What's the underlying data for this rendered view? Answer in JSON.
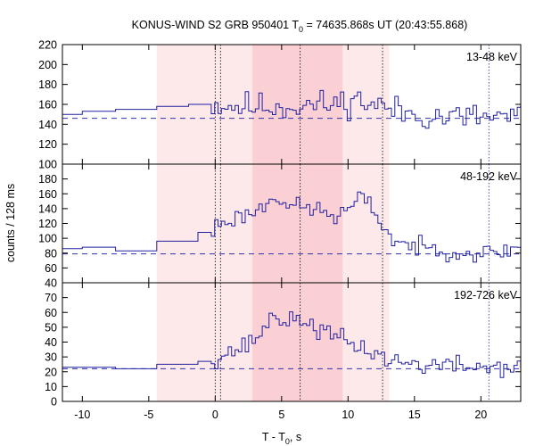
{
  "title": {
    "main": "KONUS-WIND S2 GRB 950401 T",
    "sub": "0",
    "rest": " = 74635.868s UT (20:43:55.868)"
  },
  "xlabel": {
    "main": "T - T",
    "sub": "0",
    "rest": ", s"
  },
  "ylabel": "counts / 128 ms",
  "colors": {
    "curve": "#2020a0",
    "bg_line": "#3030b0",
    "shade_light": "#fde8ea",
    "shade_dark": "#fbd0d4",
    "axis": "#000000"
  },
  "chart_data": {
    "type": "line",
    "xlim": [
      -11.5,
      23
    ],
    "xticks": [
      -10,
      -5,
      0,
      5,
      10,
      15,
      20
    ],
    "xtick_labels": [
      "-10",
      "-5",
      "0",
      "5",
      "10",
      "15",
      "20"
    ],
    "light_region": [
      -4.4,
      13.1
    ],
    "dark_region": [
      2.8,
      9.6
    ],
    "dotted_lines": [
      0.0,
      0.4,
      6.4,
      12.6
    ],
    "blue_dotted_line": 20.6,
    "panels": [
      {
        "label": "13-48 keV",
        "ylim": [
          100,
          220
        ],
        "yticks": [
          100,
          120,
          140,
          160,
          180,
          200,
          220
        ],
        "ytick_labels": [
          "100",
          "120",
          "140",
          "160",
          "180",
          "200",
          "220"
        ],
        "background": 146,
        "steps": [
          [
            -11.5,
            150
          ],
          [
            -10,
            153
          ],
          [
            -7.5,
            155
          ],
          [
            -4.4,
            158
          ],
          [
            -2,
            160
          ]
        ],
        "noisy": {
          "start": -0.3,
          "end": 23,
          "dt": 0.256,
          "noise": 11,
          "seed": 11,
          "knots": [
            [
              -0.3,
              160
            ],
            [
              2,
              158
            ],
            [
              5,
              158
            ],
            [
              9,
              160
            ],
            [
              10.5,
              165
            ],
            [
              12,
              160
            ],
            [
              14,
              152
            ],
            [
              17,
              147
            ],
            [
              20,
              147
            ],
            [
              23,
              148
            ]
          ]
        }
      },
      {
        "label": "48-192 keV",
        "ylim": [
          40,
          200
        ],
        "yticks": [
          40,
          60,
          80,
          100,
          120,
          140,
          160,
          180
        ],
        "ytick_labels": [
          "40",
          "60",
          "80",
          "100",
          "120",
          "140",
          "160",
          "180"
        ],
        "background": 79,
        "steps": [
          [
            -11.5,
            86
          ],
          [
            -10,
            88
          ],
          [
            -7.5,
            83
          ],
          [
            -4.4,
            96
          ],
          [
            -1.3,
            108
          ]
        ],
        "noisy": {
          "start": -0.3,
          "end": 23,
          "dt": 0.256,
          "noise": 9,
          "seed": 23,
          "knots": [
            [
              -0.3,
              98
            ],
            [
              0,
              118
            ],
            [
              2,
              130
            ],
            [
              3.5,
              140
            ],
            [
              4.5,
              160
            ],
            [
              5.5,
              145
            ],
            [
              7,
              140
            ],
            [
              8,
              138
            ],
            [
              9,
              128
            ],
            [
              10,
              138
            ],
            [
              11,
              155
            ],
            [
              12,
              138
            ],
            [
              12.6,
              118
            ],
            [
              13.2,
              100
            ],
            [
              15,
              88
            ],
            [
              17,
              85
            ],
            [
              19,
              80
            ],
            [
              21,
              80
            ],
            [
              23,
              88
            ]
          ]
        }
      },
      {
        "label": "192-726 keV",
        "ylim": [
          0,
          80
        ],
        "yticks": [
          0,
          10,
          20,
          30,
          40,
          50,
          60,
          70
        ],
        "ytick_labels": [
          "0",
          "10",
          "20",
          "30",
          "40",
          "50",
          "60",
          "70"
        ],
        "background": 22,
        "steps": [
          [
            -11.5,
            23
          ],
          [
            -10,
            23
          ],
          [
            -7.5,
            22
          ],
          [
            -4.4,
            25
          ],
          [
            -1.3,
            27
          ]
        ],
        "noisy": {
          "start": -0.3,
          "end": 23,
          "dt": 0.256,
          "noise": 5,
          "seed": 37,
          "knots": [
            [
              -0.3,
              28
            ],
            [
              1,
              33
            ],
            [
              2.5,
              38
            ],
            [
              3.8,
              50
            ],
            [
              4.5,
              60
            ],
            [
              5.5,
              52
            ],
            [
              6.5,
              56
            ],
            [
              7.5,
              50
            ],
            [
              8.5,
              45
            ],
            [
              9.5,
              42
            ],
            [
              10.5,
              38
            ],
            [
              12,
              33
            ],
            [
              13,
              28
            ],
            [
              15,
              25
            ],
            [
              18,
              24
            ],
            [
              21,
              23
            ],
            [
              23,
              24
            ]
          ]
        }
      }
    ]
  }
}
